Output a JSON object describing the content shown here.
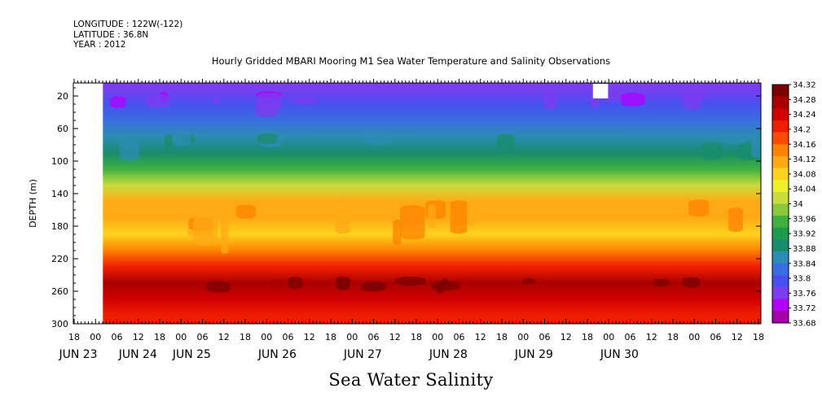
{
  "header": {
    "longitude": "LONGITUDE : 122W(-122)",
    "latitude": "LATITUDE : 36.8N",
    "year": "YEAR : 2012"
  },
  "chart_title": "Hourly Gridded MBARI Mooring M1 Sea Water Temperature and Salinity Observations",
  "footer_label": "Sea Water Salinity",
  "chart_data": {
    "type": "heatmap",
    "title": "Hourly Gridded MBARI Mooring M1 Sea Water Temperature and Salinity Observations",
    "xlabel": "",
    "ylabel": "DEPTH (m)",
    "variable": "Sea Water Salinity",
    "x_hour_ticks": [
      "18",
      "00",
      "06",
      "12",
      "18",
      "00",
      "06",
      "12",
      "18",
      "00",
      "06",
      "12",
      "18",
      "00",
      "06",
      "12",
      "18",
      "00",
      "06",
      "12",
      "18",
      "00",
      "06",
      "12",
      "18",
      "00",
      "06",
      "12",
      "18",
      "00",
      "06",
      "12",
      "18"
    ],
    "x_day_labels": [
      "JUN 23",
      "JUN 24",
      "JUN 25",
      "JUN 26",
      "JUN 27",
      "JUN 28",
      "JUN 29",
      "JUN 30"
    ],
    "y_ticks": [
      20,
      60,
      100,
      140,
      180,
      220,
      260,
      300
    ],
    "ylim": [
      300,
      4
    ],
    "no_data": [
      "before JUN 24 00",
      "JUN 29 ~19-23h near surface"
    ],
    "depth_profile": [
      {
        "depth": 10,
        "value": 33.76
      },
      {
        "depth": 30,
        "value": 33.78
      },
      {
        "depth": 50,
        "value": 33.82
      },
      {
        "depth": 70,
        "value": 33.86
      },
      {
        "depth": 90,
        "value": 33.89
      },
      {
        "depth": 110,
        "value": 33.94
      },
      {
        "depth": 130,
        "value": 34.02
      },
      {
        "depth": 150,
        "value": 34.1
      },
      {
        "depth": 170,
        "value": 34.11
      },
      {
        "depth": 190,
        "value": 34.09
      },
      {
        "depth": 210,
        "value": 34.16
      },
      {
        "depth": 230,
        "value": 34.22
      },
      {
        "depth": 250,
        "value": 34.26
      },
      {
        "depth": 270,
        "value": 34.23
      },
      {
        "depth": 290,
        "value": 34.2
      }
    ],
    "colorbar": {
      "min": 33.68,
      "max": 34.32,
      "step": 0.04,
      "labels": [
        "34.32",
        "34.28",
        "34.24",
        "34.2",
        "34.16",
        "34.12",
        "34.08",
        "34.04",
        "34",
        "33.96",
        "33.92",
        "33.88",
        "33.84",
        "33.8",
        "33.76",
        "33.72",
        "33.68"
      ],
      "colors": [
        "#a800a8",
        "#b400ff",
        "#7c3cf0",
        "#4850f0",
        "#3a6ee0",
        "#2c8cb4",
        "#188c6c",
        "#1c9c4c",
        "#40b040",
        "#8cc83c",
        "#c8dc3c",
        "#f0f028",
        "#ffd21e",
        "#ffaa14",
        "#ff8200",
        "#ff4a00",
        "#f01e00",
        "#d20000",
        "#aa0000",
        "#7c0000"
      ]
    }
  }
}
